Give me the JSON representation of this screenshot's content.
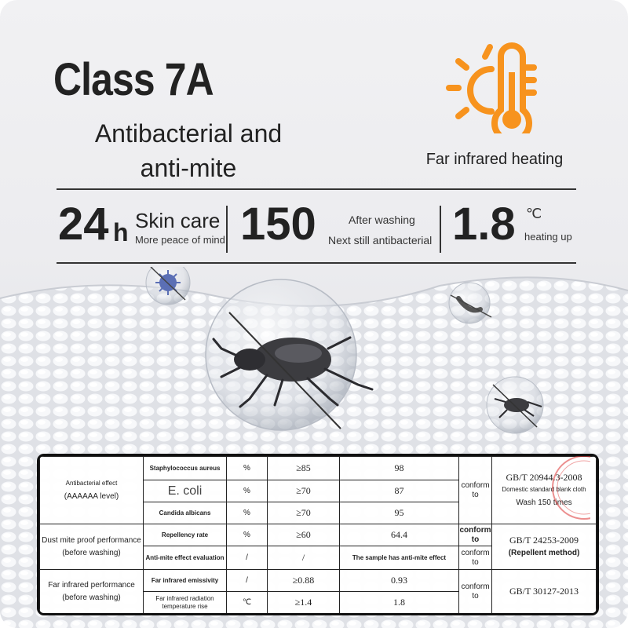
{
  "headline": "Class 7A",
  "subheadline": {
    "line1": "Antibacterial and",
    "line2": "anti-mite"
  },
  "feature_icon": {
    "icon": "sun-thermometer-icon",
    "color": "#f7931e"
  },
  "feature_label": "Far infrared heating",
  "stats": [
    {
      "big": "24",
      "unit": "h",
      "title": "Skin care",
      "caption": "More peace of mind"
    },
    {
      "big": "150",
      "title": "After washing",
      "caption": "Next still antibacterial"
    },
    {
      "big": "1.8",
      "unit": "℃",
      "caption": "heating up"
    }
  ],
  "table": {
    "groups": {
      "antibacterial": {
        "line1": "Antibacterial effect",
        "line2": "(AAAAAA level)"
      },
      "dust_mite": {
        "line1": "Dust mite proof performance",
        "line2": "(before washing)"
      },
      "far_infrared": {
        "line1": "Far infrared performance",
        "line2": "(before washing)"
      }
    },
    "rows": [
      {
        "item": "Staphylococcus aureus",
        "unit": "%",
        "requirement": "≥85",
        "result": "98"
      },
      {
        "item": "E. coli",
        "unit": "%",
        "requirement": "≥70",
        "result": "87"
      },
      {
        "item": "Candida albicans",
        "unit": "%",
        "requirement": "≥70",
        "result": "95"
      },
      {
        "item": "Repellency rate",
        "unit": "%",
        "requirement": "≥60",
        "result": "64.4"
      },
      {
        "item": "Anti-mite effect evaluation",
        "unit": "/",
        "requirement": "/",
        "result": "The sample has anti-mite effect"
      },
      {
        "item": "Far infrared emissivity",
        "unit": "/",
        "requirement": "≥0.88",
        "result": "0.93"
      },
      {
        "item": "Far infrared radiation temperature rise",
        "unit": "℃",
        "requirement": "≥1.4",
        "result": "1.8"
      }
    ],
    "conform": {
      "word1": "conform",
      "word2": "to"
    },
    "standards": {
      "antibacterial": {
        "code": "GB/T 20944.3-2008",
        "note1": "Domestic standard blank cloth",
        "note2": "Wash 150 times"
      },
      "dust_mite": {
        "code": "GB/T 24253-2009",
        "note": "(Repellent method)"
      },
      "far_infrared": {
        "code": "GB/T 30127-2013"
      }
    }
  }
}
